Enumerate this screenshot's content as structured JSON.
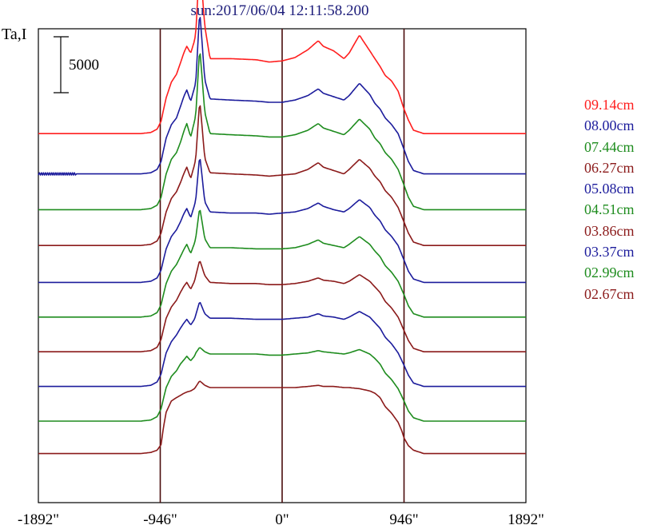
{
  "title": "sun:2017/06/04 12:11:58.200",
  "ylabel": "Ta,I",
  "scale_bar_label": "5000",
  "chart_data": {
    "type": "line",
    "title": "sun:2017/06/04 12:11:58.200",
    "xlabel": "",
    "ylabel": "Ta,I",
    "xlim": [
      -1892,
      1892
    ],
    "xticks": [
      -1892,
      -946,
      0,
      946,
      1892
    ],
    "xtick_labels": [
      "-1892\"",
      "-946\"",
      "0\"",
      "946\"",
      "1892\""
    ],
    "vertical_lines": [
      -946,
      0,
      946
    ],
    "scale_bar": 5000,
    "series": [
      {
        "name": "09.14cm",
        "color": "#ff1e1e",
        "offset": 31700,
        "noise": 0,
        "x": [
          -1892,
          -1100,
          -1020,
          -970,
          -940,
          -900,
          -860,
          -820,
          -790,
          -760,
          -740,
          -710,
          -680,
          -670,
          -640,
          -600,
          -560,
          -400,
          -200,
          -100,
          0,
          100,
          200,
          280,
          320,
          400,
          480,
          520,
          600,
          680,
          720,
          760,
          800,
          850,
          900,
          946,
          980,
          1020,
          1100,
          1892
        ],
        "y": [
          0,
          0,
          100,
          400,
          1100,
          3200,
          4600,
          5300,
          6300,
          7300,
          7800,
          7200,
          8300,
          9000,
          15500,
          9600,
          6700,
          6700,
          6600,
          6400,
          6500,
          6800,
          7500,
          8300,
          7800,
          7400,
          6700,
          7200,
          8800,
          7400,
          6700,
          6000,
          5200,
          4700,
          3800,
          2200,
          1200,
          300,
          0,
          0
        ]
      },
      {
        "name": "08.00cm",
        "color": "#1c1c9c",
        "offset": 28100,
        "noise": 100,
        "x": [
          -1892,
          -1100,
          -1020,
          -970,
          -940,
          -900,
          -860,
          -820,
          -790,
          -760,
          -740,
          -710,
          -680,
          -670,
          -640,
          -600,
          -560,
          -400,
          -200,
          -100,
          0,
          100,
          200,
          280,
          320,
          400,
          480,
          520,
          600,
          680,
          720,
          760,
          800,
          850,
          900,
          946,
          980,
          1020,
          1100,
          1892
        ],
        "y": [
          0,
          0,
          100,
          400,
          1100,
          3200,
          4400,
          5000,
          6000,
          7000,
          7500,
          6500,
          7700,
          8200,
          14600,
          8400,
          6700,
          6600,
          6500,
          6400,
          6400,
          6600,
          7000,
          7600,
          7200,
          6900,
          6600,
          7000,
          8100,
          7100,
          6300,
          5800,
          5000,
          4400,
          3600,
          2200,
          1100,
          300,
          0,
          0
        ]
      },
      {
        "name": "07.44cm",
        "color": "#1e8c1e",
        "offset": 24900,
        "noise": 0,
        "x": [
          -1892,
          -1100,
          -1020,
          -970,
          -940,
          -900,
          -860,
          -820,
          -790,
          -760,
          -740,
          -710,
          -680,
          -670,
          -640,
          -600,
          -560,
          -400,
          -200,
          -100,
          0,
          100,
          200,
          280,
          320,
          400,
          480,
          520,
          600,
          680,
          720,
          760,
          800,
          850,
          900,
          946,
          980,
          1020,
          1100,
          1892
        ],
        "y": [
          0,
          0,
          100,
          400,
          1100,
          3200,
          4500,
          5100,
          6000,
          7100,
          7700,
          6500,
          7900,
          8500,
          14500,
          8700,
          6800,
          6700,
          6600,
          6500,
          6500,
          6700,
          7100,
          7700,
          7300,
          7000,
          6700,
          7100,
          8100,
          7200,
          6400,
          5900,
          5100,
          4500,
          3600,
          2200,
          1100,
          300,
          0,
          0
        ]
      },
      {
        "name": "06.27cm",
        "color": "#8b1a1a",
        "offset": 21700,
        "noise": 0,
        "x": [
          -1892,
          -1100,
          -1020,
          -970,
          -940,
          -900,
          -860,
          -820,
          -790,
          -760,
          -740,
          -710,
          -680,
          -670,
          -640,
          -600,
          -560,
          -400,
          -200,
          -100,
          0,
          100,
          200,
          280,
          320,
          400,
          480,
          520,
          600,
          680,
          720,
          760,
          800,
          850,
          900,
          946,
          980,
          1020,
          1100,
          1892
        ],
        "y": [
          0,
          0,
          100,
          400,
          1100,
          3000,
          4200,
          4800,
          5600,
          6500,
          7000,
          6000,
          7200,
          7800,
          13000,
          7800,
          6500,
          6400,
          6300,
          6200,
          6300,
          6400,
          6800,
          7400,
          7000,
          6700,
          6400,
          6800,
          7700,
          6900,
          6200,
          5700,
          4900,
          4300,
          3400,
          2100,
          1100,
          300,
          0,
          0
        ]
      },
      {
        "name": "05.08cm",
        "color": "#1c1c9c",
        "offset": 18400,
        "noise": 0,
        "x": [
          -1892,
          -1100,
          -1020,
          -970,
          -940,
          -900,
          -860,
          -820,
          -790,
          -760,
          -740,
          -710,
          -680,
          -670,
          -640,
          -600,
          -560,
          -400,
          -200,
          -100,
          0,
          100,
          200,
          280,
          320,
          400,
          480,
          520,
          600,
          680,
          720,
          760,
          800,
          850,
          900,
          946,
          980,
          1020,
          1100,
          1892
        ],
        "y": [
          0,
          0,
          100,
          400,
          1100,
          3000,
          4100,
          4700,
          5400,
          6200,
          6600,
          5800,
          6900,
          7400,
          11400,
          7200,
          6300,
          6200,
          6200,
          6100,
          6200,
          6300,
          6600,
          7100,
          6800,
          6500,
          6300,
          6600,
          7400,
          6700,
          6000,
          5500,
          4700,
          4100,
          3300,
          2000,
          1000,
          300,
          0,
          0
        ]
      },
      {
        "name": "04.51cm",
        "color": "#1e8c1e",
        "offset": 15300,
        "noise": 0,
        "x": [
          -1892,
          -1100,
          -1020,
          -970,
          -940,
          -900,
          -860,
          -820,
          -790,
          -760,
          -740,
          -710,
          -680,
          -670,
          -640,
          -600,
          -560,
          -400,
          -200,
          -100,
          0,
          100,
          200,
          280,
          320,
          400,
          480,
          520,
          600,
          680,
          720,
          760,
          800,
          850,
          900,
          946,
          980,
          1020,
          1100,
          1892
        ],
        "y": [
          0,
          0,
          100,
          400,
          1100,
          3000,
          4100,
          4700,
          5400,
          6100,
          6500,
          5700,
          6600,
          7100,
          9800,
          7000,
          6200,
          6200,
          6100,
          6100,
          6100,
          6200,
          6500,
          6900,
          6600,
          6400,
          6200,
          6500,
          7200,
          6500,
          5900,
          5400,
          4600,
          4000,
          3200,
          2000,
          1000,
          300,
          0,
          0
        ]
      },
      {
        "name": "03.86cm",
        "color": "#8b1a1a",
        "offset": 12200,
        "noise": 0,
        "x": [
          -1892,
          -1100,
          -1020,
          -970,
          -940,
          -900,
          -860,
          -820,
          -790,
          -760,
          -740,
          -710,
          -680,
          -670,
          -640,
          -600,
          -560,
          -400,
          -200,
          -100,
          0,
          100,
          200,
          280,
          320,
          400,
          480,
          520,
          600,
          680,
          720,
          760,
          800,
          850,
          900,
          946,
          980,
          1020,
          1100,
          1892
        ],
        "y": [
          0,
          0,
          100,
          400,
          1100,
          3000,
          4000,
          4600,
          5300,
          5900,
          6200,
          5600,
          6300,
          6800,
          8200,
          6800,
          6200,
          6100,
          6100,
          6000,
          6000,
          6100,
          6300,
          6600,
          6400,
          6300,
          6100,
          6300,
          6900,
          6300,
          5800,
          5300,
          4500,
          3900,
          3100,
          1900,
          1000,
          300,
          0,
          0
        ]
      },
      {
        "name": "03.37cm",
        "color": "#1c1c9c",
        "offset": 9100,
        "noise": 0,
        "x": [
          -1892,
          -1100,
          -1020,
          -970,
          -940,
          -900,
          -860,
          -820,
          -790,
          -760,
          -740,
          -710,
          -680,
          -670,
          -640,
          -600,
          -560,
          -400,
          -200,
          -100,
          0,
          100,
          200,
          280,
          320,
          400,
          480,
          520,
          600,
          680,
          720,
          760,
          800,
          850,
          900,
          946,
          980,
          1020,
          1100,
          1892
        ],
        "y": [
          0,
          0,
          100,
          400,
          1100,
          3000,
          4000,
          4600,
          5200,
          5700,
          6000,
          5500,
          6000,
          6400,
          7600,
          6500,
          6100,
          6100,
          6000,
          6000,
          6000,
          6100,
          6200,
          6500,
          6300,
          6200,
          6000,
          6200,
          6700,
          6200,
          5700,
          5200,
          4400,
          3800,
          3000,
          1900,
          1000,
          300,
          0,
          0
        ]
      },
      {
        "name": "02.99cm",
        "color": "#1e8c1e",
        "offset": 6000,
        "noise": 0,
        "x": [
          -1892,
          -1100,
          -1020,
          -970,
          -940,
          -900,
          -860,
          -820,
          -790,
          -760,
          -740,
          -710,
          -680,
          -670,
          -640,
          -600,
          -560,
          -400,
          -200,
          -100,
          0,
          100,
          200,
          280,
          320,
          400,
          480,
          520,
          600,
          680,
          720,
          760,
          800,
          850,
          900,
          946,
          980,
          1020,
          1100,
          1892
        ],
        "y": [
          0,
          0,
          100,
          400,
          1100,
          3000,
          4000,
          4500,
          5100,
          5500,
          5800,
          5400,
          5800,
          6100,
          6600,
          6200,
          6000,
          6000,
          6000,
          5900,
          5900,
          6000,
          6100,
          6300,
          6200,
          6100,
          6000,
          6100,
          6400,
          6000,
          5600,
          5100,
          4300,
          3700,
          2900,
          1800,
          900,
          300,
          0,
          0
        ]
      },
      {
        "name": "02.67cm",
        "color": "#8b1a1a",
        "offset": 3100,
        "noise": 0,
        "x": [
          -1892,
          -1100,
          -1020,
          -970,
          -940,
          -920,
          -900,
          -860,
          -820,
          -790,
          -760,
          -740,
          -710,
          -680,
          -640,
          -600,
          -560,
          -400,
          -200,
          -100,
          0,
          100,
          200,
          280,
          320,
          400,
          480,
          520,
          600,
          680,
          720,
          760,
          800,
          850,
          900,
          930,
          946,
          980,
          1020,
          1100,
          1892
        ],
        "y": [
          0,
          0,
          100,
          300,
          800,
          2400,
          3700,
          4700,
          5000,
          5200,
          5400,
          5500,
          5600,
          5800,
          6500,
          6100,
          5900,
          5900,
          5900,
          5900,
          5900,
          5900,
          6000,
          6100,
          6000,
          6000,
          5900,
          5900,
          5800,
          5600,
          5400,
          5000,
          4200,
          3600,
          2800,
          2000,
          1400,
          700,
          300,
          0,
          0
        ]
      }
    ]
  }
}
